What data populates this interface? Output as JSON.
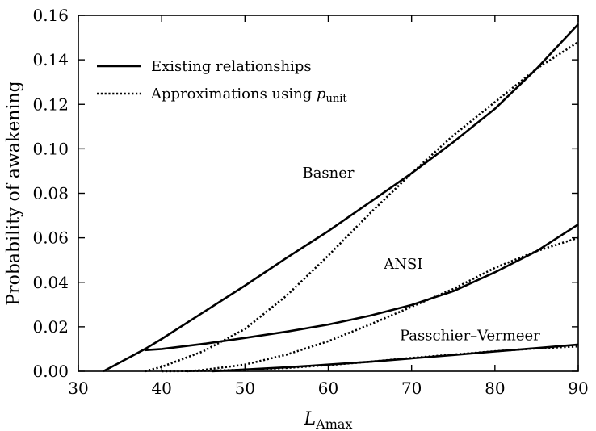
{
  "chart_data": {
    "type": "line",
    "title": "",
    "xlabel": "L",
    "xlabel_sub": "Amax",
    "ylabel": "Probability of awakening",
    "xlim": [
      30,
      90
    ],
    "ylim": [
      0,
      0.16
    ],
    "xticks": [
      30,
      40,
      50,
      60,
      70,
      80,
      90
    ],
    "yticks": [
      0.0,
      0.02,
      0.04,
      0.06,
      0.08,
      0.1,
      0.12,
      0.14,
      0.16
    ],
    "ytick_labels": [
      "0.00",
      "0.02",
      "0.04",
      "0.06",
      "0.08",
      "0.10",
      "0.12",
      "0.14",
      "0.16"
    ],
    "grid": false,
    "legend": {
      "placement": "top-left",
      "entries": [
        {
          "label": "Existing relationships",
          "style": "solid"
        },
        {
          "label": "Approximations using ",
          "label_math": "p",
          "label_sub": "unit",
          "style": "dotted"
        }
      ]
    },
    "annotations": [
      {
        "text": "Basner",
        "x": 60,
        "y": 0.087
      },
      {
        "text": "ANSI",
        "x": 69,
        "y": 0.046
      },
      {
        "text": "Passchier–Vermeer",
        "x": 77,
        "y": 0.014
      }
    ],
    "series": [
      {
        "group": "Basner",
        "style": "solid",
        "x": [
          33,
          35,
          38,
          40,
          45,
          50,
          55,
          60,
          65,
          70,
          75,
          80,
          85,
          90
        ],
        "y": [
          0.0,
          0.004,
          0.01,
          0.0145,
          0.0265,
          0.0385,
          0.051,
          0.063,
          0.076,
          0.089,
          0.103,
          0.118,
          0.136,
          0.156
        ]
      },
      {
        "group": "Basner",
        "style": "dotted",
        "x": [
          38,
          40,
          45,
          50,
          55,
          60,
          65,
          70,
          75,
          80,
          85,
          90
        ],
        "y": [
          0.0,
          0.002,
          0.009,
          0.019,
          0.034,
          0.052,
          0.071,
          0.089,
          0.106,
          0.121,
          0.136,
          0.148
        ]
      },
      {
        "group": "ANSI",
        "style": "solid",
        "x": [
          38,
          40,
          45,
          50,
          55,
          60,
          65,
          70,
          75,
          80,
          85,
          90
        ],
        "y": [
          0.0095,
          0.01,
          0.0123,
          0.015,
          0.0178,
          0.021,
          0.025,
          0.0298,
          0.036,
          0.0445,
          0.054,
          0.066
        ]
      },
      {
        "group": "ANSI",
        "style": "dotted",
        "x": [
          43,
          45,
          50,
          55,
          60,
          65,
          70,
          75,
          80,
          85,
          90
        ],
        "y": [
          0.0,
          0.0006,
          0.003,
          0.0075,
          0.0135,
          0.021,
          0.029,
          0.037,
          0.0465,
          0.054,
          0.06
        ]
      },
      {
        "group": "Passchier-Vermeer",
        "style": "solid",
        "x": [
          46,
          50,
          55,
          60,
          65,
          70,
          75,
          80,
          85,
          90
        ],
        "y": [
          0.0,
          0.0008,
          0.0018,
          0.003,
          0.0043,
          0.0058,
          0.0073,
          0.0089,
          0.0104,
          0.012
        ]
      },
      {
        "group": "Passchier-Vermeer",
        "style": "dotted",
        "x": [
          40,
          45,
          50,
          55,
          60,
          65,
          70,
          75,
          80,
          85,
          90
        ],
        "y": [
          0.0,
          0.0002,
          0.0007,
          0.0015,
          0.0028,
          0.0043,
          0.006,
          0.0075,
          0.009,
          0.0103,
          0.0112
        ]
      }
    ]
  }
}
